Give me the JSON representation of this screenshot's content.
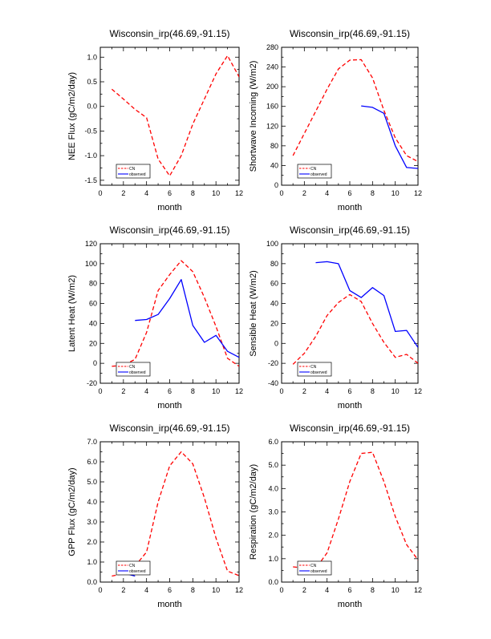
{
  "chart_data": [
    {
      "type": "line",
      "title": "Wisconsin_irp(46.69,-91.15)",
      "xlabel": "month",
      "ylabel": "NEE Flux (gC/m2/day)",
      "xlim": [
        0,
        12
      ],
      "ylim": [
        -1.6,
        1.2
      ],
      "xticks": [
        0,
        2,
        4,
        6,
        8,
        10,
        12
      ],
      "yticks": [
        -1.5,
        -1.0,
        -0.5,
        0.0,
        0.5,
        1.0
      ],
      "ytick_labels": [
        "-1.5",
        "-1.0",
        "-0.5",
        "0.0",
        "0.5",
        "1.0"
      ],
      "series": [
        {
          "name": "CN",
          "color": "#ff0000",
          "dash": true,
          "x": [
            1,
            2,
            3,
            4,
            5,
            6,
            7,
            8,
            9,
            10,
            11,
            12
          ],
          "values": [
            0.35,
            0.15,
            -0.06,
            -0.23,
            -1.07,
            -1.41,
            -1.0,
            -0.36,
            0.15,
            0.66,
            1.03,
            0.6
          ]
        },
        {
          "name": "observed",
          "color": "#0000ff",
          "dash": false,
          "x": [],
          "values": []
        }
      ]
    },
    {
      "type": "line",
      "title": "Wisconsin_irp(46.69,-91.15)",
      "xlabel": "month",
      "ylabel": "Shortwave Incoming (W/m2)",
      "xlim": [
        0,
        12
      ],
      "ylim": [
        0,
        280
      ],
      "xticks": [
        0,
        2,
        4,
        6,
        8,
        10,
        12
      ],
      "yticks": [
        0,
        40,
        80,
        120,
        160,
        200,
        240,
        280
      ],
      "ytick_labels": [
        "0",
        "40",
        "80",
        "120",
        "160",
        "200",
        "240",
        "280"
      ],
      "series": [
        {
          "name": "CN",
          "color": "#ff0000",
          "dash": true,
          "x": [
            1,
            2,
            3,
            4,
            5,
            6,
            7,
            8,
            9,
            10,
            11,
            12
          ],
          "values": [
            60,
            105,
            150,
            195,
            236,
            254,
            255,
            218,
            152,
            96,
            60,
            48
          ]
        },
        {
          "name": "observed",
          "color": "#0000ff",
          "dash": false,
          "x": [
            7,
            8,
            9,
            10,
            11,
            12
          ],
          "values": [
            161,
            158,
            146,
            80,
            36,
            34
          ]
        }
      ]
    },
    {
      "type": "line",
      "title": "Wisconsin_irp(46.69,-91.15)",
      "xlabel": "month",
      "ylabel": "Latent Heat (W/m2)",
      "xlim": [
        0,
        12
      ],
      "ylim": [
        -20,
        120
      ],
      "xticks": [
        0,
        2,
        4,
        6,
        8,
        10,
        12
      ],
      "yticks": [
        -20,
        0,
        20,
        40,
        60,
        80,
        100,
        120
      ],
      "ytick_labels": [
        "-20",
        "0",
        "20",
        "40",
        "60",
        "80",
        "100",
        "120"
      ],
      "series": [
        {
          "name": "CN",
          "color": "#ff0000",
          "dash": true,
          "x": [
            1,
            2,
            3,
            4,
            5,
            6,
            7,
            8,
            9,
            10,
            11,
            12
          ],
          "values": [
            -3,
            -2,
            4,
            31,
            73,
            89,
            103,
            92,
            66,
            37,
            5,
            -3
          ]
        },
        {
          "name": "observed",
          "color": "#0000ff",
          "dash": false,
          "x": [
            3,
            4,
            5,
            6,
            7,
            8,
            9,
            10,
            11,
            12
          ],
          "values": [
            43,
            44,
            49,
            65,
            84,
            38,
            21,
            28,
            12,
            6
          ]
        }
      ]
    },
    {
      "type": "line",
      "title": "Wisconsin_irp(46.69,-91.15)",
      "xlabel": "month",
      "ylabel": "Sensible Heat (W/m2)",
      "xlim": [
        0,
        12
      ],
      "ylim": [
        -40,
        100
      ],
      "xticks": [
        0,
        2,
        4,
        6,
        8,
        10,
        12
      ],
      "yticks": [
        -40,
        -20,
        0,
        20,
        40,
        60,
        80,
        100
      ],
      "ytick_labels": [
        "-40",
        "-20",
        "0",
        "20",
        "40",
        "60",
        "80",
        "100"
      ],
      "series": [
        {
          "name": "CN",
          "color": "#ff0000",
          "dash": true,
          "x": [
            1,
            2,
            3,
            4,
            5,
            6,
            7,
            8,
            9,
            10,
            11,
            12
          ],
          "values": [
            -21,
            -10,
            7,
            28,
            41,
            49,
            42,
            20,
            1,
            -14,
            -11,
            -20
          ]
        },
        {
          "name": "observed",
          "color": "#0000ff",
          "dash": false,
          "x": [
            3,
            4,
            5,
            6,
            7,
            8,
            9,
            10,
            11,
            12
          ],
          "values": [
            81,
            82,
            80,
            53,
            46,
            56,
            48,
            12,
            13,
            -4
          ]
        }
      ]
    },
    {
      "type": "line",
      "title": "Wisconsin_irp(46.69,-91.15)",
      "xlabel": "month",
      "ylabel": "GPP Flux (gC/m2/day)",
      "xlim": [
        0,
        12
      ],
      "ylim": [
        0,
        7
      ],
      "xticks": [
        0,
        2,
        4,
        6,
        8,
        10,
        12
      ],
      "yticks": [
        0,
        1,
        2,
        3,
        4,
        5,
        6,
        7
      ],
      "ytick_labels": [
        "0.0",
        "1.0",
        "2.0",
        "3.0",
        "4.0",
        "5.0",
        "6.0",
        "7.0"
      ],
      "series": [
        {
          "name": "CN",
          "color": "#ff0000",
          "dash": true,
          "x": [
            1,
            2,
            3,
            4,
            5,
            6,
            7,
            8,
            9,
            10,
            11,
            12
          ],
          "values": [
            0.3,
            0.42,
            0.8,
            1.5,
            4.0,
            5.8,
            6.5,
            5.9,
            4.2,
            2.2,
            0.55,
            0.32
          ]
        },
        {
          "name": "observed",
          "color": "#0000ff",
          "dash": false,
          "x": [
            2,
            3
          ],
          "values": [
            0.45,
            0.3
          ]
        }
      ]
    },
    {
      "type": "line",
      "title": "Wisconsin_irp(46.69,-91.15)",
      "xlabel": "month",
      "ylabel": "Respiration (gC/m2/day)",
      "xlim": [
        0,
        12
      ],
      "ylim": [
        0,
        6
      ],
      "xticks": [
        0,
        2,
        4,
        6,
        8,
        10,
        12
      ],
      "yticks": [
        0,
        1,
        2,
        3,
        4,
        5,
        6
      ],
      "ytick_labels": [
        "0.0",
        "1.0",
        "2.0",
        "3.0",
        "4.0",
        "5.0",
        "6.0"
      ],
      "series": [
        {
          "name": "CN",
          "color": "#ff0000",
          "dash": true,
          "x": [
            1,
            2,
            3,
            4,
            5,
            6,
            7,
            8,
            9,
            10,
            11,
            12
          ],
          "values": [
            0.65,
            0.6,
            0.58,
            1.25,
            2.7,
            4.3,
            5.5,
            5.55,
            4.3,
            2.8,
            1.6,
            0.95
          ]
        },
        {
          "name": "observed",
          "color": "#0000ff",
          "dash": false,
          "x": [],
          "values": []
        }
      ]
    }
  ]
}
